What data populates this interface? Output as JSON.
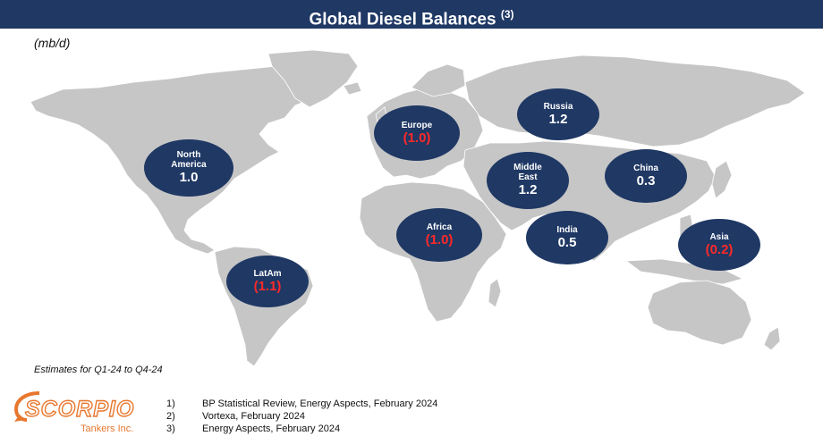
{
  "header": {
    "title": "Global Diesel Balances",
    "title_sup": "(3)"
  },
  "unit_label": "(mb/d)",
  "regions": [
    {
      "name": "North America",
      "value": "1.0",
      "negative": false
    },
    {
      "name": "Europe",
      "value": "(1.0)",
      "negative": true
    },
    {
      "name": "Russia",
      "value": "1.2",
      "negative": false
    },
    {
      "name": "Middle East",
      "value": "1.2",
      "negative": false
    },
    {
      "name": "China",
      "value": "0.3",
      "negative": false
    },
    {
      "name": "Africa",
      "value": "(1.0)",
      "negative": true
    },
    {
      "name": "India",
      "value": "0.5",
      "negative": false
    },
    {
      "name": "Asia",
      "value": "(0.2)",
      "negative": true
    },
    {
      "name": "LatAm",
      "value": "(1.1)",
      "negative": true
    }
  ],
  "estimates_note": "Estimates for Q1-24 to Q4-24",
  "logo": {
    "name": "SCORPIO",
    "subtitle": "Tankers Inc."
  },
  "footnotes": [
    {
      "num": "1)",
      "text": "BP Statistical Review, Energy Aspects, February 2024"
    },
    {
      "num": "2)",
      "text": "Vortexa, February 2024"
    },
    {
      "num": "3)",
      "text": "Energy Aspects, February 2024"
    }
  ],
  "colors": {
    "navy": "#1f3864",
    "negative": "#ff2a2a",
    "land": "#c6c6c6",
    "logo": "#e8772e"
  }
}
